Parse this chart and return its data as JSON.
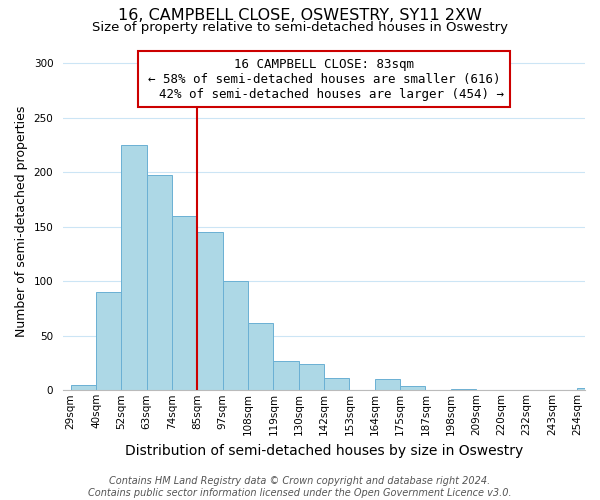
{
  "title": "16, CAMPBELL CLOSE, OSWESTRY, SY11 2XW",
  "subtitle": "Size of property relative to semi-detached houses in Oswestry",
  "xlabel": "Distribution of semi-detached houses by size in Oswestry",
  "ylabel": "Number of semi-detached properties",
  "bin_labels": [
    "29sqm",
    "40sqm",
    "52sqm",
    "63sqm",
    "74sqm",
    "85sqm",
    "97sqm",
    "108sqm",
    "119sqm",
    "130sqm",
    "142sqm",
    "153sqm",
    "164sqm",
    "175sqm",
    "187sqm",
    "198sqm",
    "209sqm",
    "220sqm",
    "232sqm",
    "243sqm",
    "254sqm"
  ],
  "bar_heights": [
    5,
    90,
    225,
    198,
    160,
    145,
    100,
    62,
    27,
    24,
    11,
    0,
    10,
    4,
    0,
    1,
    0,
    0,
    0,
    0,
    2
  ],
  "bar_color": "#add8e6",
  "bar_edge_color": "#6ab0d4",
  "red_line_bin": 5,
  "annotation_title": "16 CAMPBELL CLOSE: 83sqm",
  "annotation_line1": "← 58% of semi-detached houses are smaller (616)",
  "annotation_line2": "  42% of semi-detached houses are larger (454) →",
  "red_line_color": "#cc0000",
  "annotation_box_color": "#ffffff",
  "annotation_box_edge": "#cc0000",
  "footer1": "Contains HM Land Registry data © Crown copyright and database right 2024.",
  "footer2": "Contains public sector information licensed under the Open Government Licence v3.0.",
  "ylim": [
    0,
    310
  ],
  "title_fontsize": 11.5,
  "subtitle_fontsize": 9.5,
  "xlabel_fontsize": 10,
  "ylabel_fontsize": 9,
  "tick_fontsize": 7.5,
  "annotation_fontsize": 9,
  "footer_fontsize": 7
}
